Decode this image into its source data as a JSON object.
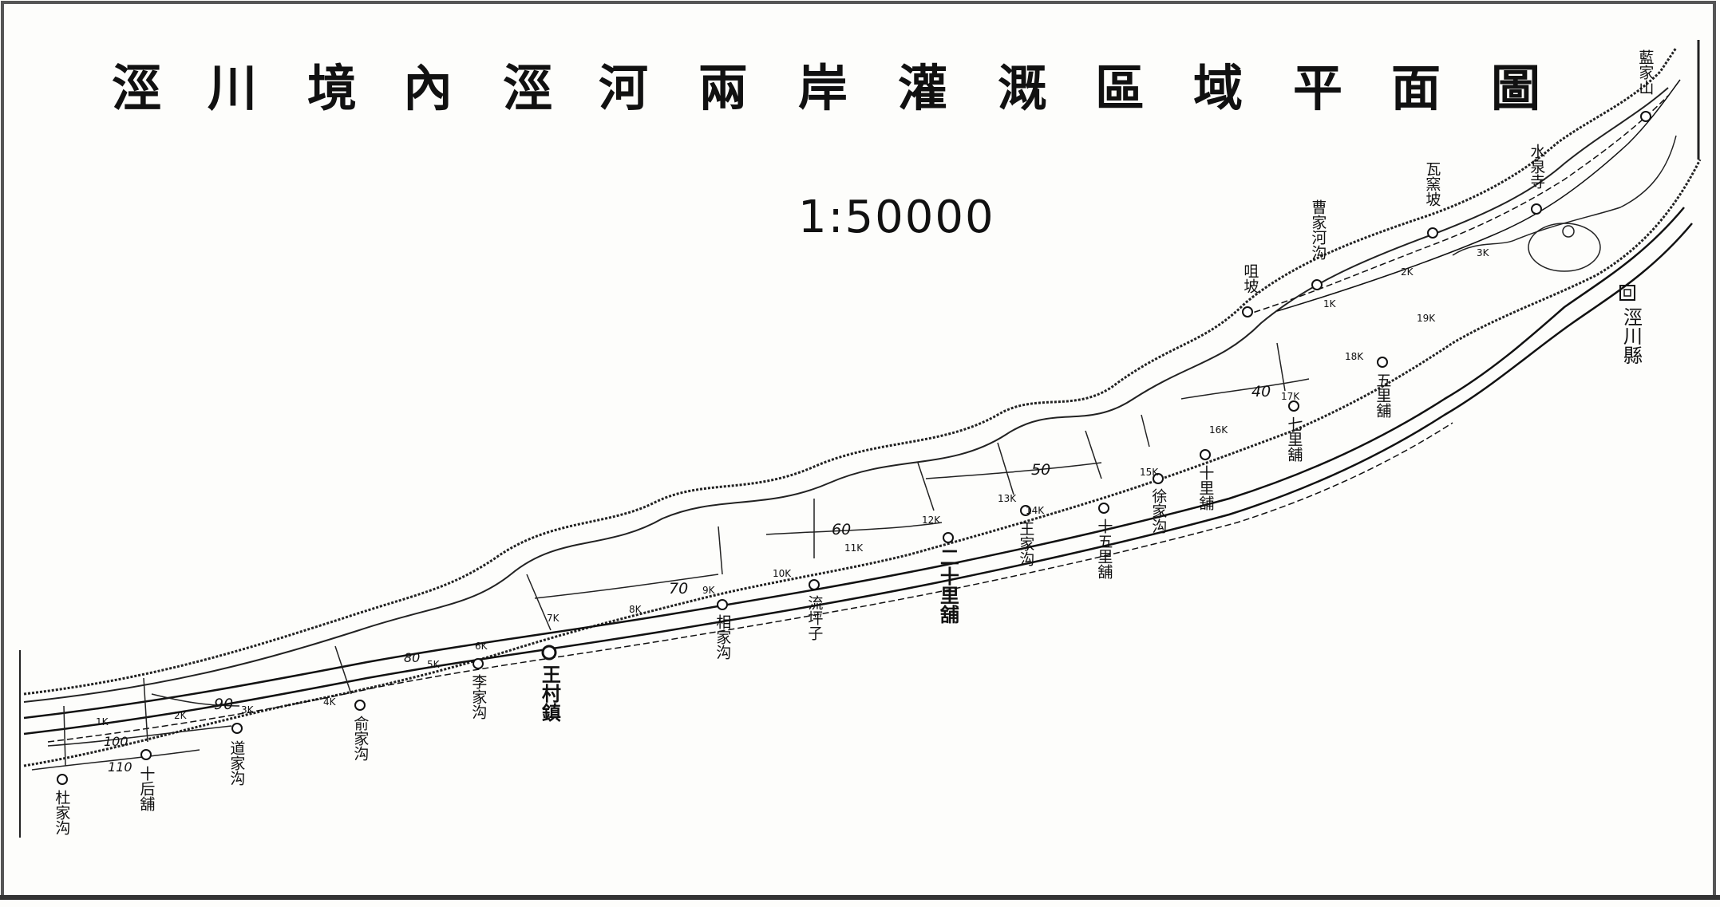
{
  "title": "涇川境內涇河兩岸灌溉區域平面圖",
  "scale": "1:50000",
  "county_seat": {
    "symbol": "回",
    "name": "涇川縣"
  },
  "places": [
    {
      "id": "dujiagou",
      "name": "杜家沟"
    },
    {
      "id": "shiwuli",
      "name": "十后舖"
    },
    {
      "id": "daojiagou",
      "name": "道家沟"
    },
    {
      "id": "yujiagou",
      "name": "俞家沟"
    },
    {
      "id": "lijiagou",
      "name": "李家沟"
    },
    {
      "id": "wangcunzhen",
      "name": "王村鎮"
    },
    {
      "id": "xiangjiagou",
      "name": "相家沟"
    },
    {
      "id": "liupingzi",
      "name": "流坪子"
    },
    {
      "id": "ershilipu",
      "name": "二十里舖"
    },
    {
      "id": "wangjiagou",
      "name": "王家沟"
    },
    {
      "id": "shiwulipu",
      "name": "十五里舖"
    },
    {
      "id": "xujiagou",
      "name": "徐家沟"
    },
    {
      "id": "shilipu",
      "name": "十里舖"
    },
    {
      "id": "qilipu",
      "name": "七里舖"
    },
    {
      "id": "wulipu",
      "name": "五里舖"
    },
    {
      "id": "xianbo",
      "name": "咀坡"
    },
    {
      "id": "caojiahegou",
      "name": "曹家河沟"
    },
    {
      "id": "wayaopo",
      "name": "瓦窯坡"
    },
    {
      "id": "shuiquansi",
      "name": "水泉寺"
    },
    {
      "id": "lanjiashan",
      "name": "藍家山"
    }
  ],
  "contours": [
    "110",
    "100",
    "90",
    "80",
    "70",
    "60",
    "50",
    "40"
  ],
  "km_marks": [
    "1K",
    "2K",
    "3K",
    "4K",
    "5K",
    "6K",
    "7K",
    "8K",
    "9K",
    "10K",
    "11K",
    "12K",
    "13K",
    "14K",
    "15K",
    "16K",
    "17K",
    "18K",
    "19K",
    "2K",
    "3K",
    "1K"
  ],
  "colors": {
    "ink": "#1a1a1a",
    "paper": "#fdfdfb"
  }
}
